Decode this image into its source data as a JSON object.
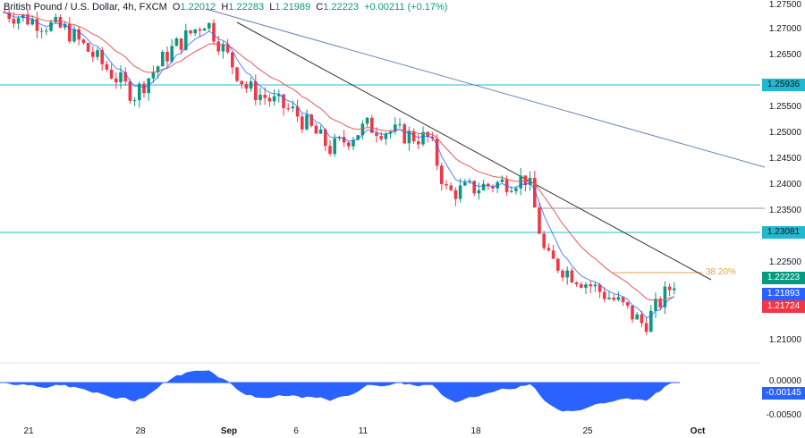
{
  "header": {
    "symbol": "British Pound / U.S. Dollar, 4h, FXCM",
    "open_label": "O",
    "open": "1.22012",
    "high_label": "H",
    "high": "1.22283",
    "low_label": "L",
    "low": "1.21989",
    "close_label": "C",
    "close": "1.22223",
    "change": "+0.00211 (+0.17%)"
  },
  "colors": {
    "up": "#089981",
    "down": "#f23645",
    "ema_fast": "#2962ff",
    "ema_slow": "#e05c5c",
    "horizontal_level": "#22b8cf",
    "trendline_dark": "#333333",
    "trendline_blue": "#6a86b8",
    "fib": "#e2a54a",
    "resistance_grey": "#9e8fa8",
    "oscillator": "#2962ff"
  },
  "price_axis": {
    "labels": [
      "1.27500",
      "1.27000",
      "1.26500",
      "1.25500",
      "1.25000",
      "1.24500",
      "1.24000",
      "1.23500",
      "1.22500",
      "1.21000"
    ],
    "tags": {
      "level_upper": "1.25936",
      "level_lower": "1.23081",
      "last_price": "1.22223",
      "ema_fast": "1.21893",
      "ema_slow": "1.21724"
    }
  },
  "oscillator_axis": {
    "labels": [
      "0.00000",
      "-0.00500"
    ],
    "current": "-0.00145"
  },
  "time_axis": {
    "labels": [
      "21",
      "28",
      "Sep",
      "6",
      "11",
      "18",
      "25",
      "Oct"
    ]
  },
  "annotations": {
    "fib_label": "38.20%"
  },
  "chart_data": {
    "type": "candlestick",
    "title": "British Pound / U.S. Dollar, 4h, FXCM",
    "ohlc_last": {
      "open": 1.22012,
      "high": 1.22283,
      "low": 1.21989,
      "close": 1.22223,
      "change": 0.00211,
      "change_pct": 0.17
    },
    "x_ticks": [
      "21",
      "28",
      "Sep",
      "6",
      "11",
      "18",
      "25",
      "Oct"
    ],
    "y_ticks": [
      1.275,
      1.27,
      1.265,
      1.255,
      1.25,
      1.245,
      1.24,
      1.235,
      1.225,
      1.21
    ],
    "ylim": [
      1.208,
      1.276
    ],
    "horizontal_levels": [
      1.25936,
      1.23081,
      1.2355
    ],
    "fib_level": {
      "label": "38.20%",
      "price": 1.2227
    },
    "indicators": {
      "ema_fast_last": 1.21893,
      "ema_slow_last": 1.21724,
      "oscillator_last": -0.00145,
      "oscillator_ylim": [
        -0.0065,
        0.003
      ]
    },
    "close_path_approx": {
      "x": [
        "Aug 21",
        "Aug 24",
        "Aug 28",
        "Aug 31",
        "Sep 1",
        "Sep 4",
        "Sep 6",
        "Sep 8",
        "Sep 11",
        "Sep 13",
        "Sep 15",
        "Sep 18",
        "Sep 20",
        "Sep 22",
        "Sep 25",
        "Sep 27",
        "Sep 29"
      ],
      "close": [
        1.2735,
        1.27,
        1.2575,
        1.266,
        1.272,
        1.259,
        1.254,
        1.247,
        1.2515,
        1.2495,
        1.249,
        1.2385,
        1.2415,
        1.226,
        1.2175,
        1.213,
        1.2222
      ]
    }
  }
}
